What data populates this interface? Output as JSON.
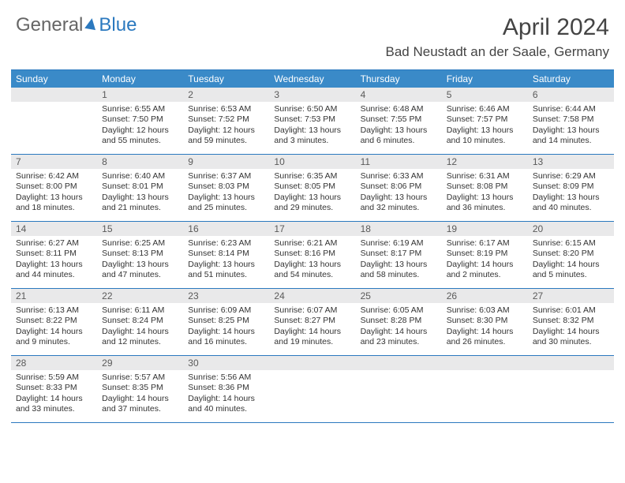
{
  "logo": {
    "part1": "General",
    "part2": "Blue"
  },
  "title": "April 2024",
  "subtitle": "Bad Neustadt an der Saale, Germany",
  "colors": {
    "brand": "#2b79bf",
    "header_bg": "#3a8ac8",
    "daynum_bg": "#e9e9ea",
    "text": "#333333",
    "border": "#2b79bf"
  },
  "days_of_week": [
    "Sunday",
    "Monday",
    "Tuesday",
    "Wednesday",
    "Thursday",
    "Friday",
    "Saturday"
  ],
  "labels": {
    "sunrise": "Sunrise:",
    "sunset": "Sunset:",
    "daylight": "Daylight:"
  },
  "weeks": [
    [
      {
        "n": "",
        "empty": true
      },
      {
        "n": "1",
        "sunrise": "6:55 AM",
        "sunset": "7:50 PM",
        "daylight": "12 hours and 55 minutes."
      },
      {
        "n": "2",
        "sunrise": "6:53 AM",
        "sunset": "7:52 PM",
        "daylight": "12 hours and 59 minutes."
      },
      {
        "n": "3",
        "sunrise": "6:50 AM",
        "sunset": "7:53 PM",
        "daylight": "13 hours and 3 minutes."
      },
      {
        "n": "4",
        "sunrise": "6:48 AM",
        "sunset": "7:55 PM",
        "daylight": "13 hours and 6 minutes."
      },
      {
        "n": "5",
        "sunrise": "6:46 AM",
        "sunset": "7:57 PM",
        "daylight": "13 hours and 10 minutes."
      },
      {
        "n": "6",
        "sunrise": "6:44 AM",
        "sunset": "7:58 PM",
        "daylight": "13 hours and 14 minutes."
      }
    ],
    [
      {
        "n": "7",
        "sunrise": "6:42 AM",
        "sunset": "8:00 PM",
        "daylight": "13 hours and 18 minutes."
      },
      {
        "n": "8",
        "sunrise": "6:40 AM",
        "sunset": "8:01 PM",
        "daylight": "13 hours and 21 minutes."
      },
      {
        "n": "9",
        "sunrise": "6:37 AM",
        "sunset": "8:03 PM",
        "daylight": "13 hours and 25 minutes."
      },
      {
        "n": "10",
        "sunrise": "6:35 AM",
        "sunset": "8:05 PM",
        "daylight": "13 hours and 29 minutes."
      },
      {
        "n": "11",
        "sunrise": "6:33 AM",
        "sunset": "8:06 PM",
        "daylight": "13 hours and 32 minutes."
      },
      {
        "n": "12",
        "sunrise": "6:31 AM",
        "sunset": "8:08 PM",
        "daylight": "13 hours and 36 minutes."
      },
      {
        "n": "13",
        "sunrise": "6:29 AM",
        "sunset": "8:09 PM",
        "daylight": "13 hours and 40 minutes."
      }
    ],
    [
      {
        "n": "14",
        "sunrise": "6:27 AM",
        "sunset": "8:11 PM",
        "daylight": "13 hours and 44 minutes."
      },
      {
        "n": "15",
        "sunrise": "6:25 AM",
        "sunset": "8:13 PM",
        "daylight": "13 hours and 47 minutes."
      },
      {
        "n": "16",
        "sunrise": "6:23 AM",
        "sunset": "8:14 PM",
        "daylight": "13 hours and 51 minutes."
      },
      {
        "n": "17",
        "sunrise": "6:21 AM",
        "sunset": "8:16 PM",
        "daylight": "13 hours and 54 minutes."
      },
      {
        "n": "18",
        "sunrise": "6:19 AM",
        "sunset": "8:17 PM",
        "daylight": "13 hours and 58 minutes."
      },
      {
        "n": "19",
        "sunrise": "6:17 AM",
        "sunset": "8:19 PM",
        "daylight": "14 hours and 2 minutes."
      },
      {
        "n": "20",
        "sunrise": "6:15 AM",
        "sunset": "8:20 PM",
        "daylight": "14 hours and 5 minutes."
      }
    ],
    [
      {
        "n": "21",
        "sunrise": "6:13 AM",
        "sunset": "8:22 PM",
        "daylight": "14 hours and 9 minutes."
      },
      {
        "n": "22",
        "sunrise": "6:11 AM",
        "sunset": "8:24 PM",
        "daylight": "14 hours and 12 minutes."
      },
      {
        "n": "23",
        "sunrise": "6:09 AM",
        "sunset": "8:25 PM",
        "daylight": "14 hours and 16 minutes."
      },
      {
        "n": "24",
        "sunrise": "6:07 AM",
        "sunset": "8:27 PM",
        "daylight": "14 hours and 19 minutes."
      },
      {
        "n": "25",
        "sunrise": "6:05 AM",
        "sunset": "8:28 PM",
        "daylight": "14 hours and 23 minutes."
      },
      {
        "n": "26",
        "sunrise": "6:03 AM",
        "sunset": "8:30 PM",
        "daylight": "14 hours and 26 minutes."
      },
      {
        "n": "27",
        "sunrise": "6:01 AM",
        "sunset": "8:32 PM",
        "daylight": "14 hours and 30 minutes."
      }
    ],
    [
      {
        "n": "28",
        "sunrise": "5:59 AM",
        "sunset": "8:33 PM",
        "daylight": "14 hours and 33 minutes."
      },
      {
        "n": "29",
        "sunrise": "5:57 AM",
        "sunset": "8:35 PM",
        "daylight": "14 hours and 37 minutes."
      },
      {
        "n": "30",
        "sunrise": "5:56 AM",
        "sunset": "8:36 PM",
        "daylight": "14 hours and 40 minutes."
      },
      {
        "n": "",
        "empty": true
      },
      {
        "n": "",
        "empty": true
      },
      {
        "n": "",
        "empty": true
      },
      {
        "n": "",
        "empty": true
      }
    ]
  ]
}
